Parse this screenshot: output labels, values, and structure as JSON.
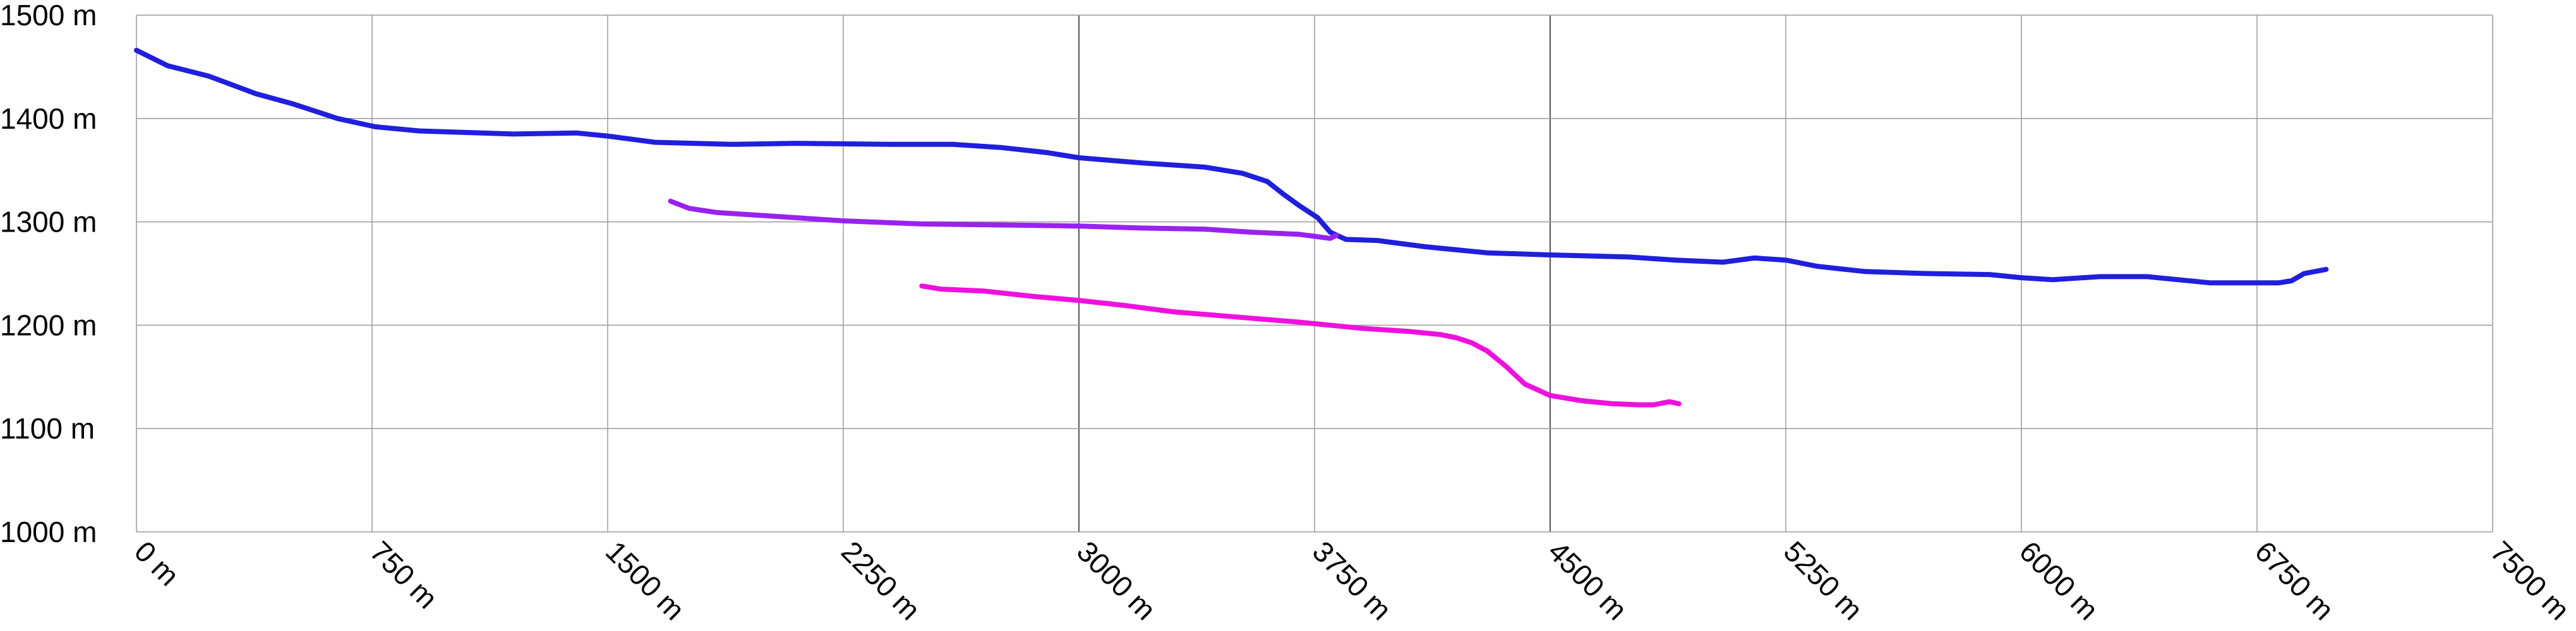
{
  "chart_data": {
    "type": "line",
    "title": "",
    "xlabel": "",
    "ylabel": "",
    "xlim": [
      0,
      7500
    ],
    "ylim": [
      1000,
      1500
    ],
    "grid": true,
    "x_ticks": [
      0,
      750,
      1500,
      2250,
      3000,
      3750,
      4500,
      5250,
      6000,
      6750,
      7500
    ],
    "y_ticks": [
      1000,
      1100,
      1200,
      1300,
      1400,
      1500
    ],
    "x_tick_labels": [
      "0 m",
      "750 m",
      "1500 m",
      "2250 m",
      "3000 m",
      "3750 m",
      "4500 m",
      "5250 m",
      "6000 m",
      "6750 m",
      "7500 m"
    ],
    "y_tick_labels": [
      "1000 m",
      "1100 m",
      "1200 m",
      "1300 m",
      "1400 m",
      "1500 m"
    ],
    "series": [
      {
        "color": "#1f1fdc",
        "x": [
          0,
          100,
          230,
          380,
          500,
          640,
          760,
          900,
          1000,
          1200,
          1400,
          1500,
          1650,
          1900,
          2100,
          2400,
          2600,
          2750,
          2900,
          3000,
          3200,
          3400,
          3520,
          3600,
          3650,
          3700,
          3760,
          3800,
          3850,
          3950,
          4100,
          4300,
          4500,
          4750,
          4900,
          5050,
          5150,
          5250,
          5350,
          5500,
          5700,
          5900,
          6000,
          6100,
          6250,
          6400,
          6600,
          6750,
          6820,
          6860,
          6900,
          6970
        ],
        "y": [
          1466,
          1451,
          1441,
          1424,
          1414,
          1400,
          1392,
          1388,
          1387,
          1385,
          1386,
          1383,
          1377,
          1375,
          1376,
          1375,
          1375,
          1372,
          1367,
          1362,
          1357,
          1353,
          1347,
          1339,
          1327,
          1316,
          1304,
          1290,
          1283,
          1282,
          1276,
          1270,
          1268,
          1266,
          1263,
          1261,
          1265,
          1263,
          1257,
          1252,
          1250,
          1249,
          1246,
          1244,
          1247,
          1247,
          1241,
          1241,
          1241,
          1243,
          1250,
          1254
        ]
      },
      {
        "color": "#9922ee",
        "x": [
          1700,
          1760,
          1850,
          2000,
          2250,
          2500,
          2750,
          3000,
          3200,
          3400,
          3550,
          3700,
          3750,
          3800,
          3820
        ],
        "y": [
          1320,
          1313,
          1309,
          1306,
          1301,
          1298,
          1297,
          1296,
          1294,
          1293,
          1290,
          1288,
          1286,
          1284,
          1287
        ]
      },
      {
        "color": "#ee11dd",
        "x": [
          2500,
          2560,
          2700,
          2850,
          3000,
          3150,
          3300,
          3500,
          3700,
          3900,
          4050,
          4150,
          4200,
          4250,
          4300,
          4360,
          4420,
          4500,
          4600,
          4700,
          4780,
          4830,
          4880,
          4910
        ],
        "y": [
          1238,
          1235,
          1233,
          1228,
          1224,
          1219,
          1213,
          1208,
          1203,
          1197,
          1194,
          1191,
          1188,
          1183,
          1175,
          1160,
          1143,
          1132,
          1127,
          1124,
          1123,
          1123,
          1126,
          1124
        ]
      }
    ]
  }
}
